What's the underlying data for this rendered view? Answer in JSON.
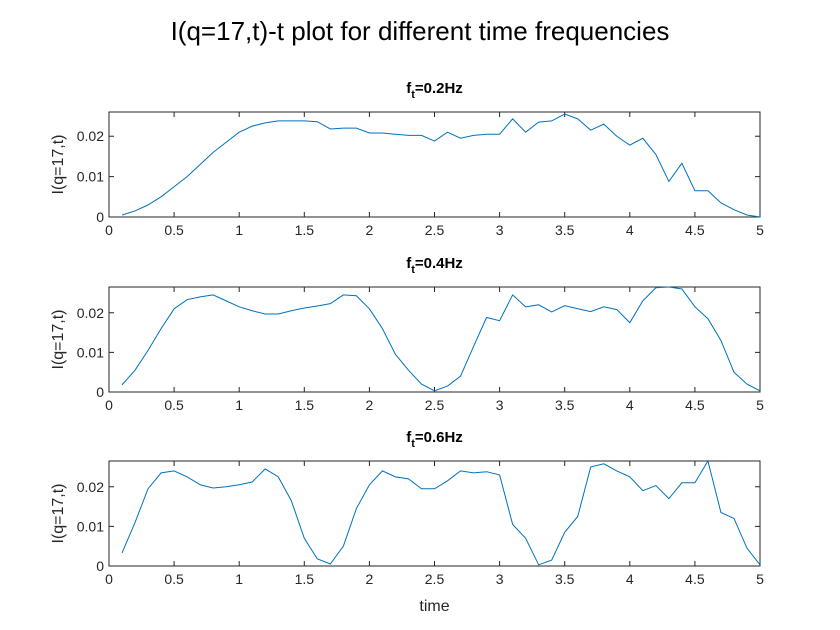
{
  "figure": {
    "title": "I(q=17,t)-t plot for different time frequencies",
    "series_color": "#0072bd"
  },
  "chart_data": [
    {
      "type": "line",
      "title_main": "f",
      "title_sub": "t",
      "title_rest": "=0.2Hz",
      "xlabel": "",
      "ylabel": "I(q=17,t)",
      "xlim": [
        0,
        5
      ],
      "ylim": [
        0,
        0.026
      ],
      "xticks": [
        0,
        0.5,
        1,
        1.5,
        2,
        2.5,
        3,
        3.5,
        4,
        4.5,
        5
      ],
      "xtick_labels": [
        "0",
        "0.5",
        "1",
        "1.5",
        "2",
        "2.5",
        "3",
        "3.5",
        "4",
        "4.5",
        "5"
      ],
      "yticks": [
        0,
        0.01,
        0.02
      ],
      "ytick_labels": [
        "0",
        "0.01",
        "0.02"
      ],
      "grid": false,
      "x": [
        0.1,
        0.2,
        0.3,
        0.4,
        0.5,
        0.6,
        0.7,
        0.8,
        0.9,
        1.0,
        1.1,
        1.2,
        1.3,
        1.4,
        1.5,
        1.6,
        1.7,
        1.8,
        1.9,
        2.0,
        2.1,
        2.2,
        2.3,
        2.4,
        2.5,
        2.6,
        2.7,
        2.8,
        2.9,
        3.0,
        3.1,
        3.2,
        3.3,
        3.4,
        3.5,
        3.6,
        3.7,
        3.8,
        3.9,
        4.0,
        4.1,
        4.2,
        4.3,
        4.4,
        4.5,
        4.6,
        4.7,
        4.8,
        4.9,
        5.0
      ],
      "y": [
        0.0005,
        0.0015,
        0.003,
        0.005,
        0.0075,
        0.01,
        0.013,
        0.016,
        0.0185,
        0.021,
        0.0225,
        0.0233,
        0.0238,
        0.0238,
        0.0238,
        0.0236,
        0.0218,
        0.022,
        0.022,
        0.0208,
        0.0208,
        0.0205,
        0.0202,
        0.0202,
        0.0188,
        0.021,
        0.0195,
        0.0202,
        0.0205,
        0.0205,
        0.0243,
        0.021,
        0.0235,
        0.0238,
        0.0255,
        0.0243,
        0.0215,
        0.023,
        0.02,
        0.0178,
        0.0195,
        0.0155,
        0.0088,
        0.0133,
        0.0065,
        0.0065,
        0.0035,
        0.0018,
        0.0005,
        0.0
      ]
    },
    {
      "type": "line",
      "title_main": "f",
      "title_sub": "t",
      "title_rest": "=0.4Hz",
      "xlabel": "",
      "ylabel": "I(q=17,t)",
      "xlim": [
        0,
        5
      ],
      "ylim": [
        0,
        0.0265
      ],
      "xticks": [
        0,
        0.5,
        1,
        1.5,
        2,
        2.5,
        3,
        3.5,
        4,
        4.5,
        5
      ],
      "xtick_labels": [
        "0",
        "0.5",
        "1",
        "1.5",
        "2",
        "2.5",
        "3",
        "3.5",
        "4",
        "4.5",
        "5"
      ],
      "yticks": [
        0,
        0.01,
        0.02
      ],
      "ytick_labels": [
        "0",
        "0.01",
        "0.02"
      ],
      "grid": false,
      "x": [
        0.1,
        0.2,
        0.3,
        0.4,
        0.5,
        0.6,
        0.7,
        0.8,
        0.9,
        1.0,
        1.1,
        1.2,
        1.3,
        1.4,
        1.5,
        1.6,
        1.7,
        1.8,
        1.9,
        2.0,
        2.1,
        2.2,
        2.3,
        2.4,
        2.5,
        2.6,
        2.7,
        2.8,
        2.9,
        3.0,
        3.1,
        3.2,
        3.3,
        3.4,
        3.5,
        3.6,
        3.7,
        3.8,
        3.9,
        4.0,
        4.1,
        4.2,
        4.3,
        4.4,
        4.5,
        4.6,
        4.7,
        4.8,
        4.9,
        5.0
      ],
      "y": [
        0.0018,
        0.0055,
        0.0105,
        0.016,
        0.021,
        0.0233,
        0.024,
        0.0245,
        0.023,
        0.0215,
        0.0205,
        0.0197,
        0.0197,
        0.0205,
        0.0212,
        0.0217,
        0.0223,
        0.0245,
        0.0243,
        0.021,
        0.016,
        0.0095,
        0.0055,
        0.002,
        0.0003,
        0.0015,
        0.004,
        0.0115,
        0.0188,
        0.018,
        0.0245,
        0.0215,
        0.022,
        0.0202,
        0.0218,
        0.021,
        0.0203,
        0.0215,
        0.0208,
        0.0175,
        0.023,
        0.0263,
        0.0265,
        0.026,
        0.0215,
        0.0185,
        0.013,
        0.005,
        0.002,
        0.0003
      ]
    },
    {
      "type": "line",
      "title_main": "f",
      "title_sub": "t",
      "title_rest": "=0.6Hz",
      "xlabel": "time",
      "ylabel": "I(q=17,t)",
      "xlim": [
        0,
        5
      ],
      "ylim": [
        0,
        0.0265
      ],
      "xticks": [
        0,
        0.5,
        1,
        1.5,
        2,
        2.5,
        3,
        3.5,
        4,
        4.5,
        5
      ],
      "xtick_labels": [
        "0",
        "0.5",
        "1",
        "1.5",
        "2",
        "2.5",
        "3",
        "3.5",
        "4",
        "4.5",
        "5"
      ],
      "yticks": [
        0,
        0.01,
        0.02
      ],
      "ytick_labels": [
        "0",
        "0.01",
        "0.02"
      ],
      "grid": false,
      "x": [
        0.1,
        0.2,
        0.3,
        0.4,
        0.5,
        0.6,
        0.7,
        0.8,
        0.9,
        1.0,
        1.1,
        1.2,
        1.3,
        1.4,
        1.5,
        1.6,
        1.7,
        1.8,
        1.9,
        2.0,
        2.1,
        2.2,
        2.3,
        2.4,
        2.5,
        2.6,
        2.7,
        2.8,
        2.9,
        3.0,
        3.1,
        3.2,
        3.3,
        3.4,
        3.5,
        3.6,
        3.7,
        3.8,
        3.9,
        4.0,
        4.1,
        4.2,
        4.3,
        4.4,
        4.5,
        4.6,
        4.7,
        4.8,
        4.9,
        5.0
      ],
      "y": [
        0.0033,
        0.011,
        0.0195,
        0.0235,
        0.024,
        0.0225,
        0.0205,
        0.0197,
        0.02,
        0.0205,
        0.0212,
        0.0245,
        0.0225,
        0.0165,
        0.007,
        0.0018,
        0.0005,
        0.005,
        0.0145,
        0.0205,
        0.024,
        0.0225,
        0.022,
        0.0195,
        0.0195,
        0.0215,
        0.024,
        0.0235,
        0.0238,
        0.023,
        0.0105,
        0.007,
        0.0003,
        0.0015,
        0.0085,
        0.0125,
        0.025,
        0.0258,
        0.024,
        0.0225,
        0.019,
        0.0203,
        0.017,
        0.021,
        0.021,
        0.0265,
        0.0135,
        0.012,
        0.0045,
        0.0003
      ]
    }
  ]
}
